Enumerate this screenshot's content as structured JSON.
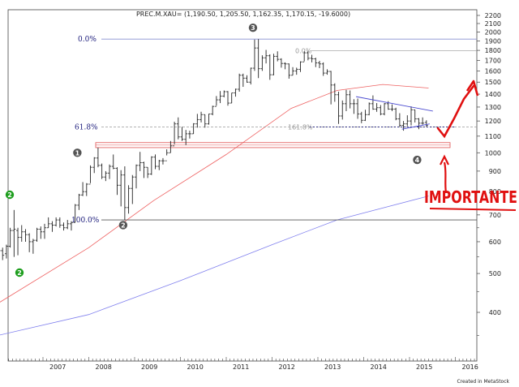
{
  "chart_data": {
    "type": "ohlc",
    "title": "PREC.M.XAU= (1,190.50, 1,205.50, 1,162.35, 1,170.15, -19.6000)",
    "credit": "Created in MetaStock",
    "y_scale": "log",
    "ylim": [
      300,
      2300
    ],
    "y_ticks": [
      400,
      500,
      600,
      700,
      800,
      900,
      1000,
      1100,
      1200,
      1300,
      1400,
      1500,
      1600,
      1700,
      1800,
      1900,
      2000,
      2100,
      2200
    ],
    "x_range": [
      "2006-01",
      "2016-09"
    ],
    "x_ticks": [
      "2007",
      "2008",
      "2009",
      "2010",
      "2011",
      "2012",
      "2013",
      "2014",
      "2015",
      "2016"
    ],
    "fib_levels": [
      {
        "label": "0.0%",
        "value": 1920
      },
      {
        "label": "61.8%",
        "value": 1160
      },
      {
        "label": "100.0%",
        "value": 680
      },
      {
        "label": "0.0%",
        "value": 1795
      },
      {
        "label": "161.8%",
        "value": 1160
      }
    ],
    "support_zone": [
      1030,
      1060
    ],
    "trendline_upper": {
      "from": [
        "2013-11",
        1380
      ],
      "to": [
        "2015-05",
        1270
      ]
    },
    "trendline_lower": {
      "from": [
        "2014-11",
        1145
      ],
      "to": [
        "2015-05",
        1180
      ]
    },
    "markers": [
      {
        "label": "1",
        "color": "#555555",
        "x": "2007-10",
        "y": 1000
      },
      {
        "label": "2",
        "color": "#1e9e1e",
        "x": "2006-01",
        "y": 650
      },
      {
        "label": "2",
        "color": "#1e9e1e",
        "x": "2006-03",
        "y": 500
      },
      {
        "label": "2",
        "color": "#555555",
        "x": "2008-10",
        "y": 660
      },
      {
        "label": "3",
        "color": "#555555",
        "x": "2011-08",
        "y": 2050
      },
      {
        "label": "4",
        "color": "#555555",
        "x": "2015-03",
        "y": 960
      }
    ],
    "annotation": "IMPORTANTE",
    "ma_long": {
      "color": "#8080ee",
      "points": [
        [
          "2006-01",
          350
        ],
        [
          "2008-01",
          395
        ],
        [
          "2010-01",
          480
        ],
        [
          "2012-01",
          590
        ],
        [
          "2013-06",
          680
        ],
        [
          "2015-06",
          780
        ]
      ]
    },
    "ma_mid": {
      "color": "#ee6060",
      "points": [
        [
          "2006-01",
          420
        ],
        [
          "2008-01",
          580
        ],
        [
          "2009-06",
          760
        ],
        [
          "2011-01",
          990
        ],
        [
          "2012-06",
          1290
        ],
        [
          "2013-06",
          1430
        ],
        [
          "2014-06",
          1480
        ],
        [
          "2015-06",
          1450
        ]
      ]
    },
    "bars": [
      [
        "2006-01",
        560,
        575,
        545,
        570
      ],
      [
        "2006-02",
        570,
        580,
        540,
        555
      ],
      [
        "2006-03",
        560,
        590,
        545,
        585
      ],
      [
        "2006-04",
        585,
        650,
        580,
        640
      ],
      [
        "2006-05",
        640,
        720,
        550,
        645
      ],
      [
        "2006-06",
        640,
        650,
        555,
        615
      ],
      [
        "2006-07",
        615,
        660,
        600,
        635
      ],
      [
        "2006-08",
        635,
        645,
        600,
        625
      ],
      [
        "2006-09",
        625,
        630,
        565,
        600
      ],
      [
        "2006-10",
        600,
        610,
        560,
        605
      ],
      [
        "2006-11",
        605,
        650,
        600,
        645
      ],
      [
        "2006-12",
        645,
        655,
        610,
        635
      ],
      [
        "2007-01",
        635,
        665,
        610,
        650
      ],
      [
        "2007-02",
        650,
        690,
        650,
        665
      ],
      [
        "2007-03",
        665,
        675,
        635,
        660
      ],
      [
        "2007-04",
        660,
        690,
        655,
        680
      ],
      [
        "2007-05",
        680,
        690,
        650,
        660
      ],
      [
        "2007-06",
        660,
        670,
        640,
        650
      ],
      [
        "2007-07",
        650,
        680,
        645,
        665
      ],
      [
        "2007-08",
        665,
        675,
        640,
        670
      ],
      [
        "2007-09",
        670,
        745,
        670,
        740
      ],
      [
        "2007-10",
        740,
        790,
        720,
        785
      ],
      [
        "2007-11",
        785,
        845,
        780,
        800
      ],
      [
        "2007-12",
        800,
        840,
        780,
        835
      ],
      [
        "2008-01",
        835,
        930,
        840,
        920
      ],
      [
        "2008-02",
        920,
        975,
        890,
        970
      ],
      [
        "2008-03",
        970,
        1030,
        920,
        930
      ],
      [
        "2008-04",
        930,
        940,
        860,
        870
      ],
      [
        "2008-05",
        870,
        900,
        850,
        890
      ],
      [
        "2008-06",
        890,
        935,
        860,
        925
      ],
      [
        "2008-07",
        925,
        990,
        910,
        915
      ],
      [
        "2008-08",
        915,
        920,
        785,
        830
      ],
      [
        "2008-09",
        830,
        905,
        735,
        880
      ],
      [
        "2008-10",
        880,
        925,
        680,
        730
      ],
      [
        "2008-11",
        730,
        830,
        705,
        815
      ],
      [
        "2008-12",
        815,
        880,
        745,
        870
      ],
      [
        "2009-01",
        870,
        935,
        815,
        930
      ],
      [
        "2009-02",
        930,
        1005,
        900,
        945
      ],
      [
        "2009-03",
        945,
        950,
        865,
        920
      ],
      [
        "2009-04",
        920,
        920,
        865,
        885
      ],
      [
        "2009-05",
        885,
        980,
        880,
        975
      ],
      [
        "2009-06",
        975,
        990,
        910,
        925
      ],
      [
        "2009-07",
        925,
        960,
        905,
        955
      ],
      [
        "2009-08",
        955,
        970,
        935,
        955
      ],
      [
        "2009-09",
        955,
        1020,
        985,
        1000
      ],
      [
        "2009-10",
        1000,
        1070,
        1000,
        1040
      ],
      [
        "2009-11",
        1040,
        1195,
        1050,
        1180
      ],
      [
        "2009-12",
        1180,
        1225,
        1080,
        1095
      ],
      [
        "2010-01",
        1095,
        1160,
        1070,
        1080
      ],
      [
        "2010-02",
        1080,
        1140,
        1045,
        1115
      ],
      [
        "2010-03",
        1115,
        1135,
        1085,
        1115
      ],
      [
        "2010-04",
        1115,
        1185,
        1115,
        1180
      ],
      [
        "2010-05",
        1180,
        1250,
        1155,
        1210
      ],
      [
        "2010-06",
        1210,
        1265,
        1190,
        1245
      ],
      [
        "2010-07",
        1245,
        1245,
        1155,
        1180
      ],
      [
        "2010-08",
        1180,
        1250,
        1175,
        1250
      ],
      [
        "2010-09",
        1250,
        1310,
        1240,
        1305
      ],
      [
        "2010-10",
        1305,
        1385,
        1310,
        1355
      ],
      [
        "2010-11",
        1355,
        1425,
        1330,
        1385
      ],
      [
        "2010-12",
        1385,
        1430,
        1375,
        1420
      ],
      [
        "2011-01",
        1420,
        1425,
        1310,
        1330
      ],
      [
        "2011-02",
        1330,
        1410,
        1330,
        1410
      ],
      [
        "2011-03",
        1410,
        1445,
        1380,
        1440
      ],
      [
        "2011-04",
        1440,
        1575,
        1420,
        1560
      ],
      [
        "2011-05",
        1560,
        1575,
        1460,
        1535
      ],
      [
        "2011-06",
        1535,
        1560,
        1495,
        1500
      ],
      [
        "2011-07",
        1500,
        1630,
        1480,
        1625
      ],
      [
        "2011-08",
        1625,
        1915,
        1600,
        1825
      ],
      [
        "2011-09",
        1825,
        1920,
        1535,
        1620
      ],
      [
        "2011-10",
        1620,
        1750,
        1600,
        1725
      ],
      [
        "2011-11",
        1725,
        1805,
        1670,
        1745
      ],
      [
        "2011-12",
        1745,
        1760,
        1520,
        1565
      ],
      [
        "2012-01",
        1565,
        1765,
        1560,
        1740
      ],
      [
        "2012-02",
        1740,
        1790,
        1690,
        1710
      ],
      [
        "2012-03",
        1710,
        1720,
        1630,
        1670
      ],
      [
        "2012-04",
        1670,
        1680,
        1615,
        1665
      ],
      [
        "2012-05",
        1665,
        1670,
        1530,
        1560
      ],
      [
        "2012-06",
        1560,
        1635,
        1560,
        1600
      ],
      [
        "2012-07",
        1600,
        1630,
        1565,
        1615
      ],
      [
        "2012-08",
        1615,
        1690,
        1590,
        1685
      ],
      [
        "2012-09",
        1685,
        1790,
        1690,
        1775
      ],
      [
        "2012-10",
        1775,
        1795,
        1700,
        1720
      ],
      [
        "2012-11",
        1720,
        1755,
        1680,
        1715
      ],
      [
        "2012-12",
        1715,
        1725,
        1635,
        1675
      ],
      [
        "2013-01",
        1675,
        1695,
        1625,
        1665
      ],
      [
        "2013-02",
        1665,
        1680,
        1555,
        1580
      ],
      [
        "2013-03",
        1580,
        1615,
        1565,
        1595
      ],
      [
        "2013-04",
        1595,
        1600,
        1320,
        1475
      ],
      [
        "2013-05",
        1475,
        1490,
        1340,
        1395
      ],
      [
        "2013-06",
        1395,
        1420,
        1180,
        1235
      ],
      [
        "2013-07",
        1235,
        1350,
        1210,
        1325
      ],
      [
        "2013-08",
        1325,
        1435,
        1270,
        1395
      ],
      [
        "2013-09",
        1395,
        1430,
        1290,
        1325
      ],
      [
        "2013-10",
        1325,
        1360,
        1250,
        1325
      ],
      [
        "2013-11",
        1325,
        1365,
        1215,
        1250
      ],
      [
        "2013-12",
        1250,
        1265,
        1185,
        1205
      ],
      [
        "2014-01",
        1205,
        1280,
        1200,
        1245
      ],
      [
        "2014-02",
        1245,
        1335,
        1240,
        1325
      ],
      [
        "2014-03",
        1325,
        1390,
        1280,
        1285
      ],
      [
        "2014-04",
        1285,
        1330,
        1265,
        1295
      ],
      [
        "2014-05",
        1295,
        1315,
        1240,
        1250
      ],
      [
        "2014-06",
        1250,
        1330,
        1240,
        1325
      ],
      [
        "2014-07",
        1325,
        1345,
        1280,
        1285
      ],
      [
        "2014-08",
        1285,
        1320,
        1270,
        1285
      ],
      [
        "2014-09",
        1285,
        1295,
        1205,
        1215
      ],
      [
        "2014-10",
        1215,
        1255,
        1160,
        1170
      ],
      [
        "2014-11",
        1170,
        1200,
        1135,
        1180
      ],
      [
        "2014-12",
        1180,
        1240,
        1165,
        1200
      ],
      [
        "2015-01",
        1200,
        1305,
        1170,
        1280
      ],
      [
        "2015-02",
        1280,
        1280,
        1190,
        1215
      ],
      [
        "2015-03",
        1215,
        1220,
        1145,
        1185
      ],
      [
        "2015-04",
        1185,
        1225,
        1175,
        1185
      ],
      [
        "2015-05",
        1190,
        1205,
        1162,
        1170
      ]
    ]
  }
}
